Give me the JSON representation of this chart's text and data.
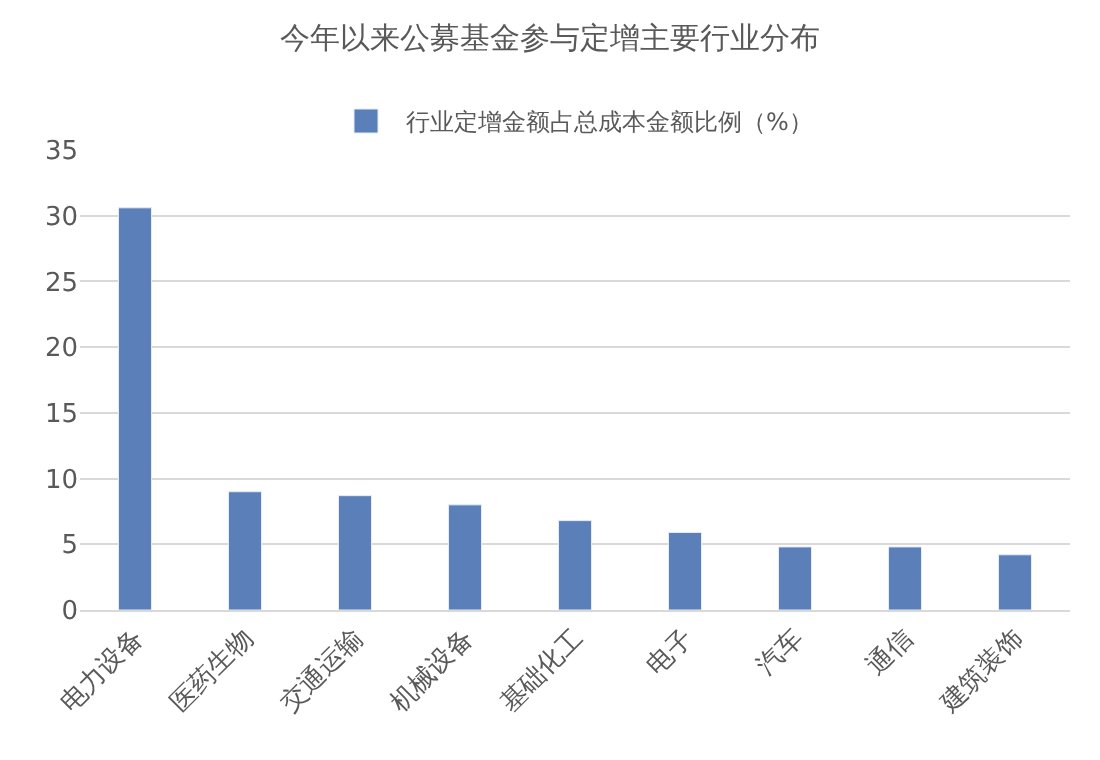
{
  "chart_data": {
    "type": "bar",
    "title": "今年以来公募基金参与定增主要行业分布",
    "categories": [
      "电力设备",
      "医药生物",
      "交通运输",
      "机械设备",
      "基础化工",
      "电子",
      "汽车",
      "通信",
      "建筑装饰"
    ],
    "series": [
      {
        "name": "行业定增金额占总成本金额比例（%）",
        "color": "#5b7fb9",
        "values": [
          30.6,
          9.0,
          8.7,
          8.0,
          6.8,
          5.9,
          4.8,
          4.8,
          4.2
        ]
      }
    ],
    "ylim": [
      0,
      35
    ],
    "yticks": [
      0,
      5,
      10,
      15,
      20,
      25,
      30,
      35
    ],
    "grid": "y",
    "legend": "top"
  }
}
